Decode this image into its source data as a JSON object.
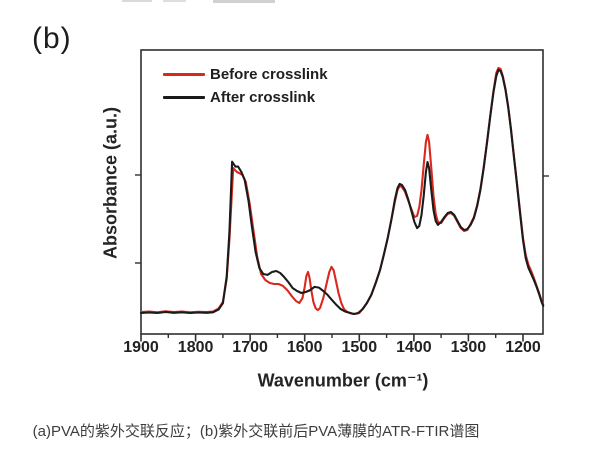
{
  "figure": {
    "panel_label": "(b)",
    "caption": "(a)PVA的紫外交联反应；(b)紫外交联前后PVA薄膜的ATR-FTIR谱图"
  },
  "colors": {
    "frame": "#2f2f2f",
    "tick": "#2f2f2f",
    "text": "#222222",
    "before_red": "#d9291e",
    "after_black": "#1b1b1b"
  },
  "chart_data": {
    "type": "line",
    "title": "",
    "xlabel": "Wavenumber (cm⁻¹)",
    "ylabel": "Absorbance (a.u.)",
    "x_axis": {
      "major_ticks": [
        1900,
        1800,
        1700,
        1600,
        1500,
        1400,
        1300,
        1200
      ],
      "minor_tick_step": 50,
      "range": [
        1900,
        1163
      ],
      "reversed": true
    },
    "y_axis": {
      "units": "a.u.",
      "tick_labels_shown": false,
      "range": [
        0,
        1.05
      ]
    },
    "legend": {
      "position": "top-left-inside"
    },
    "series": [
      {
        "name": "Before crosslink",
        "color": "#d9291e",
        "points": [
          [
            1900,
            0.004
          ],
          [
            1885,
            0.006
          ],
          [
            1870,
            0.003
          ],
          [
            1855,
            0.007
          ],
          [
            1840,
            0.004
          ],
          [
            1825,
            0.006
          ],
          [
            1810,
            0.003
          ],
          [
            1795,
            0.005
          ],
          [
            1780,
            0.004
          ],
          [
            1768,
            0.006
          ],
          [
            1758,
            0.018
          ],
          [
            1750,
            0.045
          ],
          [
            1743,
            0.14
          ],
          [
            1738,
            0.3
          ],
          [
            1734,
            0.47
          ],
          [
            1731,
            0.594
          ],
          [
            1728,
            0.586
          ],
          [
            1724,
            0.578
          ],
          [
            1719,
            0.572
          ],
          [
            1714,
            0.566
          ],
          [
            1708,
            0.537
          ],
          [
            1701,
            0.45
          ],
          [
            1694,
            0.34
          ],
          [
            1687,
            0.23
          ],
          [
            1680,
            0.16
          ],
          [
            1672,
            0.135
          ],
          [
            1664,
            0.123
          ],
          [
            1656,
            0.119
          ],
          [
            1648,
            0.119
          ],
          [
            1640,
            0.111
          ],
          [
            1632,
            0.094
          ],
          [
            1624,
            0.07
          ],
          [
            1616,
            0.049
          ],
          [
            1610,
            0.041
          ],
          [
            1604,
            0.061
          ],
          [
            1600,
            0.107
          ],
          [
            1597,
            0.152
          ],
          [
            1594,
            0.168
          ],
          [
            1591,
            0.143
          ],
          [
            1588,
            0.094
          ],
          [
            1584,
            0.045
          ],
          [
            1580,
            0.02
          ],
          [
            1576,
            0.012
          ],
          [
            1572,
            0.02
          ],
          [
            1566,
            0.061
          ],
          [
            1560,
            0.119
          ],
          [
            1555,
            0.168
          ],
          [
            1551,
            0.189
          ],
          [
            1547,
            0.176
          ],
          [
            1543,
            0.135
          ],
          [
            1538,
            0.082
          ],
          [
            1533,
            0.041
          ],
          [
            1528,
            0.016
          ],
          [
            1522,
            0.004
          ],
          [
            1515,
            -0.002
          ],
          [
            1508,
            -0.004
          ],
          [
            1500,
            0
          ],
          [
            1494,
            0.016
          ],
          [
            1486,
            0.041
          ],
          [
            1478,
            0.074
          ],
          [
            1470,
            0.123
          ],
          [
            1462,
            0.176
          ],
          [
            1455,
            0.238
          ],
          [
            1448,
            0.307
          ],
          [
            1441,
            0.385
          ],
          [
            1435,
            0.455
          ],
          [
            1430,
            0.504
          ],
          [
            1426,
            0.521
          ],
          [
            1422,
            0.517
          ],
          [
            1416,
            0.496
          ],
          [
            1410,
            0.459
          ],
          [
            1404,
            0.422
          ],
          [
            1399,
            0.393
          ],
          [
            1394,
            0.398
          ],
          [
            1390,
            0.434
          ],
          [
            1386,
            0.504
          ],
          [
            1382,
            0.606
          ],
          [
            1378,
            0.701
          ],
          [
            1375,
            0.73
          ],
          [
            1372,
            0.701
          ],
          [
            1368,
            0.594
          ],
          [
            1364,
            0.48
          ],
          [
            1360,
            0.406
          ],
          [
            1356,
            0.373
          ],
          [
            1350,
            0.369
          ],
          [
            1344,
            0.389
          ],
          [
            1338,
            0.406
          ],
          [
            1332,
            0.41
          ],
          [
            1326,
            0.398
          ],
          [
            1320,
            0.373
          ],
          [
            1314,
            0.348
          ],
          [
            1308,
            0.336
          ],
          [
            1302,
            0.34
          ],
          [
            1296,
            0.365
          ],
          [
            1290,
            0.393
          ],
          [
            1284,
            0.443
          ],
          [
            1278,
            0.508
          ],
          [
            1272,
            0.598
          ],
          [
            1266,
            0.701
          ],
          [
            1260,
            0.811
          ],
          [
            1254,
            0.91
          ],
          [
            1249,
            0.984
          ],
          [
            1245,
            1.004
          ],
          [
            1241,
            1
          ],
          [
            1237,
            0.971
          ],
          [
            1232,
            0.918
          ],
          [
            1227,
            0.844
          ],
          [
            1222,
            0.754
          ],
          [
            1217,
            0.652
          ],
          [
            1212,
            0.549
          ],
          [
            1206,
            0.43
          ],
          [
            1200,
            0.307
          ],
          [
            1195,
            0.238
          ],
          [
            1190,
            0.197
          ],
          [
            1185,
            0.172
          ],
          [
            1180,
            0.143
          ],
          [
            1175,
            0.111
          ],
          [
            1170,
            0.078
          ],
          [
            1166,
            0.049
          ],
          [
            1163,
            0.033
          ]
        ]
      },
      {
        "name": "After crosslink",
        "color": "#1b1b1b",
        "points": [
          [
            1900,
            0
          ],
          [
            1885,
            0.002
          ],
          [
            1870,
            0
          ],
          [
            1855,
            0.004
          ],
          [
            1840,
            0.001
          ],
          [
            1825,
            0.003
          ],
          [
            1810,
            0
          ],
          [
            1795,
            0.002
          ],
          [
            1780,
            0.001
          ],
          [
            1768,
            0.003
          ],
          [
            1758,
            0.014
          ],
          [
            1750,
            0.04
          ],
          [
            1743,
            0.15
          ],
          [
            1738,
            0.33
          ],
          [
            1735,
            0.5
          ],
          [
            1733,
            0.62
          ],
          [
            1730,
            0.61
          ],
          [
            1727,
            0.6
          ],
          [
            1722,
            0.6
          ],
          [
            1716,
            0.578
          ],
          [
            1710,
            0.545
          ],
          [
            1703,
            0.46
          ],
          [
            1697,
            0.357
          ],
          [
            1690,
            0.25
          ],
          [
            1683,
            0.184
          ],
          [
            1676,
            0.16
          ],
          [
            1668,
            0.156
          ],
          [
            1660,
            0.168
          ],
          [
            1652,
            0.172
          ],
          [
            1645,
            0.164
          ],
          [
            1638,
            0.148
          ],
          [
            1630,
            0.127
          ],
          [
            1622,
            0.102
          ],
          [
            1614,
            0.09
          ],
          [
            1606,
            0.082
          ],
          [
            1598,
            0.086
          ],
          [
            1590,
            0.094
          ],
          [
            1582,
            0.107
          ],
          [
            1574,
            0.104
          ],
          [
            1566,
            0.09
          ],
          [
            1558,
            0.074
          ],
          [
            1550,
            0.053
          ],
          [
            1542,
            0.033
          ],
          [
            1534,
            0.016
          ],
          [
            1526,
            0.006
          ],
          [
            1518,
            0.001
          ],
          [
            1510,
            -0.004
          ],
          [
            1502,
            0
          ],
          [
            1494,
            0.016
          ],
          [
            1486,
            0.041
          ],
          [
            1478,
            0.074
          ],
          [
            1470,
            0.123
          ],
          [
            1462,
            0.176
          ],
          [
            1455,
            0.238
          ],
          [
            1448,
            0.307
          ],
          [
            1441,
            0.385
          ],
          [
            1435,
            0.463
          ],
          [
            1430,
            0.512
          ],
          [
            1426,
            0.529
          ],
          [
            1422,
            0.525
          ],
          [
            1416,
            0.504
          ],
          [
            1410,
            0.463
          ],
          [
            1404,
            0.414
          ],
          [
            1399,
            0.373
          ],
          [
            1394,
            0.348
          ],
          [
            1390,
            0.357
          ],
          [
            1386,
            0.402
          ],
          [
            1382,
            0.48
          ],
          [
            1378,
            0.578
          ],
          [
            1375,
            0.619
          ],
          [
            1372,
            0.594
          ],
          [
            1368,
            0.504
          ],
          [
            1364,
            0.422
          ],
          [
            1360,
            0.377
          ],
          [
            1356,
            0.361
          ],
          [
            1350,
            0.373
          ],
          [
            1344,
            0.393
          ],
          [
            1338,
            0.41
          ],
          [
            1332,
            0.414
          ],
          [
            1326,
            0.402
          ],
          [
            1320,
            0.377
          ],
          [
            1314,
            0.352
          ],
          [
            1308,
            0.34
          ],
          [
            1302,
            0.344
          ],
          [
            1296,
            0.361
          ],
          [
            1290,
            0.389
          ],
          [
            1284,
            0.439
          ],
          [
            1278,
            0.504
          ],
          [
            1272,
            0.594
          ],
          [
            1266,
            0.697
          ],
          [
            1260,
            0.807
          ],
          [
            1254,
            0.906
          ],
          [
            1249,
            0.971
          ],
          [
            1245,
            0.996
          ],
          [
            1241,
            0.992
          ],
          [
            1237,
            0.967
          ],
          [
            1232,
            0.914
          ],
          [
            1227,
            0.84
          ],
          [
            1222,
            0.75
          ],
          [
            1217,
            0.648
          ],
          [
            1212,
            0.545
          ],
          [
            1206,
            0.422
          ],
          [
            1200,
            0.299
          ],
          [
            1195,
            0.225
          ],
          [
            1190,
            0.184
          ],
          [
            1185,
            0.16
          ],
          [
            1180,
            0.135
          ],
          [
            1175,
            0.107
          ],
          [
            1170,
            0.074
          ],
          [
            1166,
            0.045
          ],
          [
            1163,
            0.029
          ]
        ]
      }
    ]
  }
}
